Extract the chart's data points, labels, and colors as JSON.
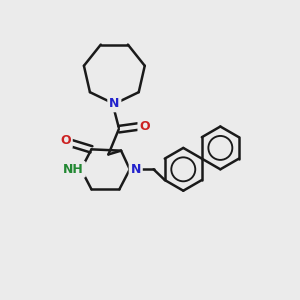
{
  "background_color": "#ebebeb",
  "line_color": "#1a1a1a",
  "n_color": "#2222cc",
  "o_color": "#cc2222",
  "nh_color": "#228833",
  "bond_width": 1.8,
  "figsize": [
    3.0,
    3.0
  ],
  "dpi": 100,
  "xlim": [
    0,
    10
  ],
  "ylim": [
    0,
    10
  ]
}
